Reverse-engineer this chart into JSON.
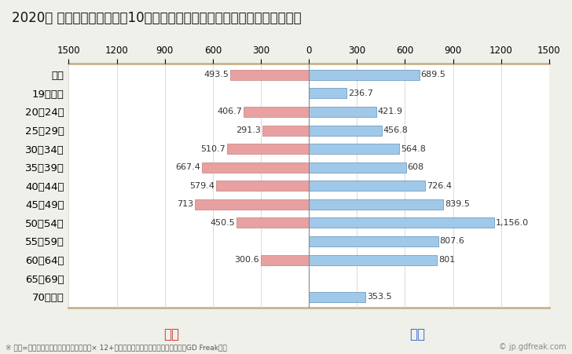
{
  "title": "2020年 民間企業（従業者数10人以上）フルタイム労働者の男女別平均年収",
  "footnote": "※ 年収=「きまって支給する現金給与額」× 12+「年間賞与その他特別給与額」としてGD Freak推計",
  "watermark": "© jp.gdfreak.com",
  "categories": [
    "全体",
    "19歳以下",
    "20～24歳",
    "25～29歳",
    "30～34歳",
    "35～39歳",
    "40～44歳",
    "45～49歳",
    "50～54歳",
    "55～59歳",
    "60～64歳",
    "65～69歳",
    "70歳以上"
  ],
  "female_values": [
    493.5,
    0,
    406.7,
    291.3,
    510.7,
    667.4,
    579.4,
    713.0,
    450.5,
    0,
    300.6,
    0,
    0
  ],
  "male_values": [
    689.5,
    236.7,
    421.9,
    456.8,
    564.8,
    608.0,
    726.4,
    839.5,
    1156.0,
    807.6,
    801.0,
    0,
    353.5
  ],
  "female_color": "#e8a0a0",
  "male_color": "#a0c8e8",
  "female_label": "女性",
  "male_label": "男性",
  "female_label_color": "#cc3333",
  "male_label_color": "#3366cc",
  "xlim": 1500,
  "background_color": "#f0f0ea",
  "plot_bg_color": "#ffffff",
  "bar_height": 0.55,
  "title_fontsize": 12,
  "tick_fontsize": 8.5,
  "label_fontsize": 8,
  "category_fontsize": 9.5
}
